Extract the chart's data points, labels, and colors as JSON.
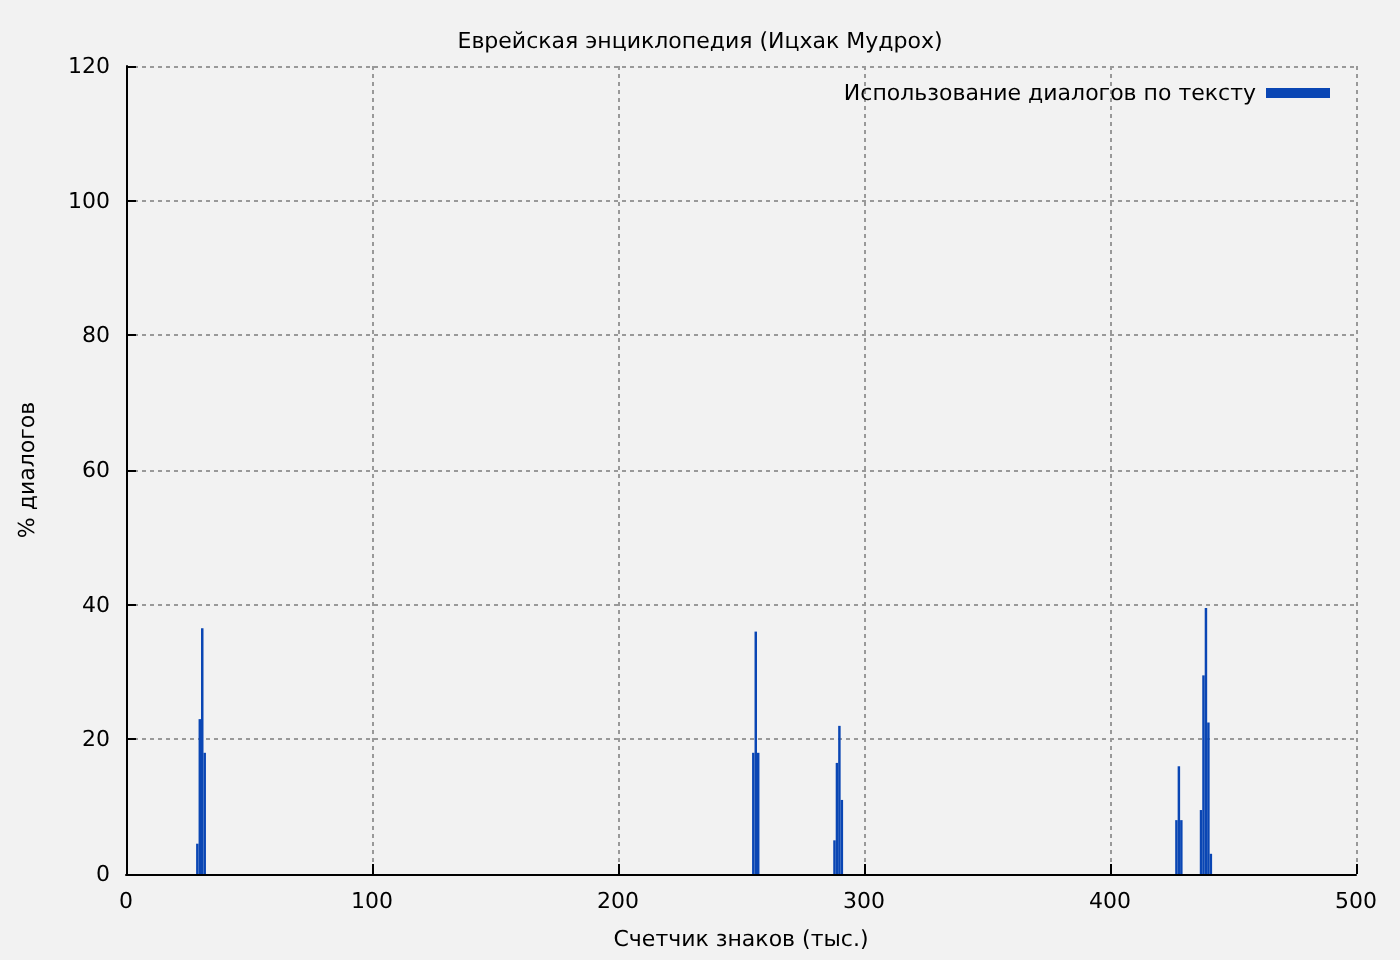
{
  "chart_data": {
    "type": "bar",
    "title": "Еврейская энциклопедия (Ицхак Мудрох)",
    "xlabel": "Счетчик знаков (тыс.)",
    "ylabel": "% диалогов",
    "x": [
      29,
      30,
      31,
      32,
      255,
      256,
      257,
      288,
      289,
      290,
      291,
      427,
      428,
      429,
      437,
      438,
      439,
      440,
      441
    ],
    "series": [
      {
        "name": "Использование диалогов по тексту",
        "color": "#0a46b4",
        "values": [
          4.5,
          23,
          36.5,
          18,
          18,
          36,
          18,
          5,
          16.5,
          22,
          11,
          8,
          16,
          8,
          9.5,
          29.5,
          39.5,
          22.5,
          3
        ]
      }
    ],
    "xlim": [
      0,
      500
    ],
    "xticks": [
      0,
      100,
      200,
      300,
      400,
      500
    ],
    "ylim": [
      0,
      120
    ],
    "yticks": [
      0,
      20,
      40,
      60,
      80,
      100,
      120
    ],
    "grid": true,
    "legend": "top right"
  }
}
